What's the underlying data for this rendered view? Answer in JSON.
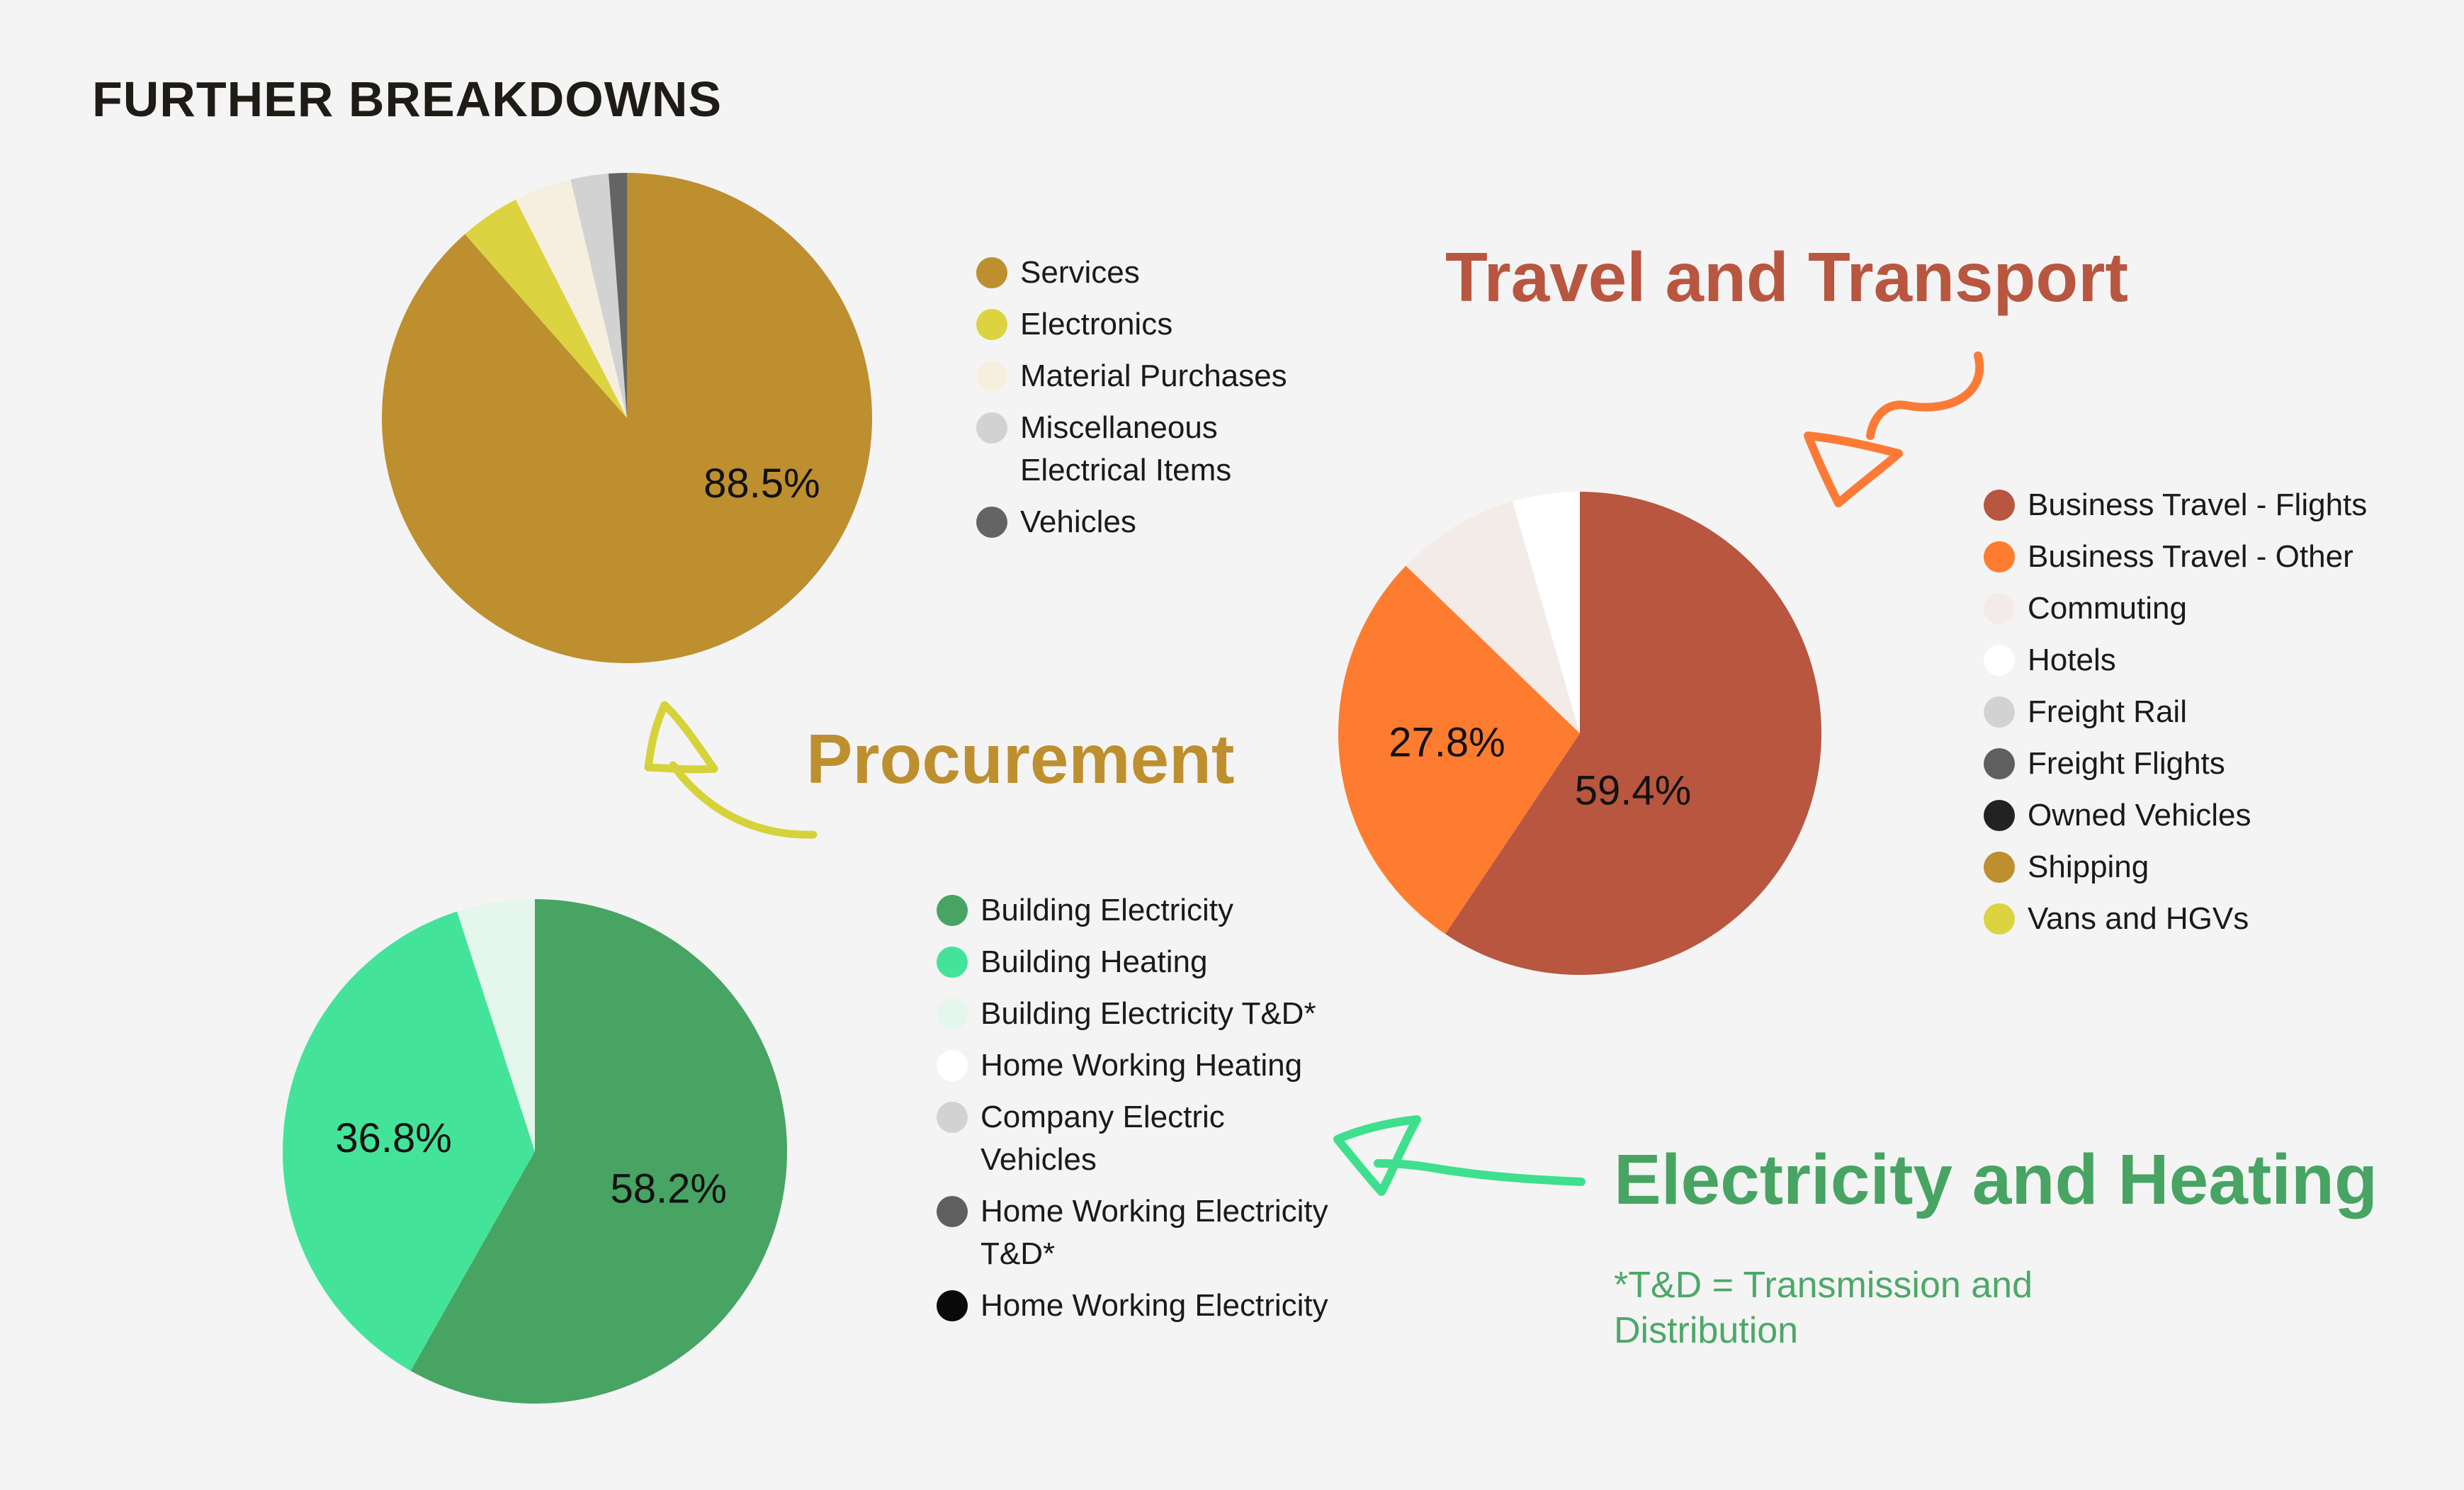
{
  "page": {
    "title": "FURTHER BREAKDOWNS"
  },
  "sections": {
    "procurement": {
      "title": "Procurement",
      "color": "#bd8f2e"
    },
    "travel": {
      "title": "Travel and Transport",
      "color": "#b85640"
    },
    "electricity": {
      "title": "Electricity and Heating",
      "color": "#47a463",
      "footnote": "*T&D = Transmission and Distribution"
    }
  },
  "chart_data": [
    {
      "type": "pie",
      "title": "",
      "legend_position": "right",
      "slices": [
        {
          "label": "Services",
          "value": 88.5,
          "color": "#bd8f2e",
          "data_label": "88.5%"
        },
        {
          "label": "Electronics",
          "value": 4.0,
          "color": "#dbd440",
          "data_label": ""
        },
        {
          "label": "Material Purchases",
          "value": 3.8,
          "color": "#f6efe0",
          "data_label": ""
        },
        {
          "label": "Miscellaneous Electrical Items",
          "value": 2.5,
          "color": "#d2d2d2",
          "data_label": ""
        },
        {
          "label": "Vehicles",
          "value": 1.2,
          "color": "#646464",
          "data_label": ""
        }
      ]
    },
    {
      "type": "pie",
      "title": "",
      "legend_position": "right",
      "slices": [
        {
          "label": "Business Travel - Flights",
          "value": 59.4,
          "color": "#b85640",
          "data_label": "59.4%"
        },
        {
          "label": "Business Travel - Other",
          "value": 27.8,
          "color": "#fd7c2f",
          "data_label": "27.8%"
        },
        {
          "label": "Commuting",
          "value": 8.3,
          "color": "#f3ebe8",
          "data_label": ""
        },
        {
          "label": "Hotels",
          "value": 4.5,
          "color": "#ffffff",
          "data_label": ""
        },
        {
          "label": "Freight Rail",
          "value": 0,
          "color": "#d2d2d2",
          "data_label": ""
        },
        {
          "label": "Freight Flights",
          "value": 0,
          "color": "#5f5f5f",
          "data_label": ""
        },
        {
          "label": "Owned Vehicles",
          "value": 0,
          "color": "#222222",
          "data_label": ""
        },
        {
          "label": "Shipping",
          "value": 0,
          "color": "#bd8f2e",
          "data_label": ""
        },
        {
          "label": "Vans and HGVs",
          "value": 0,
          "color": "#dbd440",
          "data_label": ""
        }
      ]
    },
    {
      "type": "pie",
      "title": "",
      "legend_position": "right",
      "slices": [
        {
          "label": "Building Electricity",
          "value": 58.2,
          "color": "#47a463",
          "data_label": "58.2%"
        },
        {
          "label": "Building Heating",
          "value": 36.8,
          "color": "#44e39a",
          "data_label": "36.8%"
        },
        {
          "label": "Building Electricity T&D*",
          "value": 5.0,
          "color": "#e5f6ec",
          "data_label": ""
        },
        {
          "label": "Home Working Heating",
          "value": 0,
          "color": "#ffffff",
          "data_label": ""
        },
        {
          "label": "Company Electric Vehicles",
          "value": 0,
          "color": "#d2d2d2",
          "data_label": ""
        },
        {
          "label": "Home Working Electricity T&D*",
          "value": 0,
          "color": "#5f5f5f",
          "data_label": ""
        },
        {
          "label": "Home Working Electricity",
          "value": 0,
          "color": "#0a0a0a",
          "data_label": ""
        }
      ]
    }
  ],
  "arrows": {
    "procurement": {
      "color": "#d6d23a"
    },
    "travel": {
      "color": "#fb7b36"
    },
    "electricity": {
      "color": "#3ee08d"
    }
  }
}
